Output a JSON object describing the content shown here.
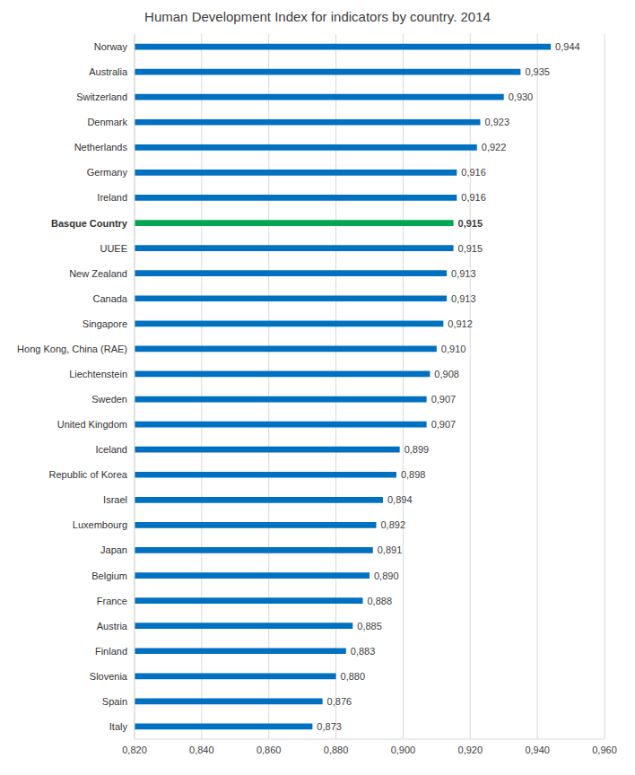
{
  "chart_data": {
    "type": "bar",
    "orientation": "horizontal",
    "title": "Human Development Index for indicators by country. 2014",
    "categories": [
      "Norway",
      "Australia",
      "Switzerland",
      "Denmark",
      "Netherlands",
      "Germany",
      "Ireland",
      "Basque Country",
      "UUEE",
      "New Zealand",
      "Canada",
      "Singapore",
      "Hong Kong, China (RAE)",
      "Liechtenstein",
      "Sweden",
      "United Kingdom",
      "Iceland",
      "Republic of Korea",
      "Israel",
      "Luxembourg",
      "Japan",
      "Belgium",
      "France",
      "Austria",
      "Finland",
      "Slovenia",
      "Spain",
      "Italy"
    ],
    "values": [
      0.944,
      0.935,
      0.93,
      0.923,
      0.922,
      0.916,
      0.916,
      0.915,
      0.915,
      0.913,
      0.913,
      0.912,
      0.91,
      0.908,
      0.907,
      0.907,
      0.899,
      0.898,
      0.894,
      0.892,
      0.891,
      0.89,
      0.888,
      0.885,
      0.883,
      0.88,
      0.876,
      0.873
    ],
    "value_labels": [
      "0,944",
      "0,935",
      "0,930",
      "0,923",
      "0,922",
      "0,916",
      "0,916",
      "0,915",
      "0,915",
      "0,913",
      "0,913",
      "0,912",
      "0,910",
      "0,908",
      "0,907",
      "0,907",
      "0,899",
      "0,898",
      "0,894",
      "0,892",
      "0,891",
      "0,890",
      "0,888",
      "0,885",
      "0,883",
      "0,880",
      "0,876",
      "0,873"
    ],
    "colors": [
      "#0070c0",
      "#0070c0",
      "#0070c0",
      "#0070c0",
      "#0070c0",
      "#0070c0",
      "#0070c0",
      "#00a650",
      "#0070c0",
      "#0070c0",
      "#0070c0",
      "#0070c0",
      "#0070c0",
      "#0070c0",
      "#0070c0",
      "#0070c0",
      "#0070c0",
      "#0070c0",
      "#0070c0",
      "#0070c0",
      "#0070c0",
      "#0070c0",
      "#0070c0",
      "#0070c0",
      "#0070c0",
      "#0070c0",
      "#0070c0",
      "#0070c0"
    ],
    "data_labels": true,
    "grid": true,
    "xlim": [
      0.82,
      0.96
    ],
    "xticks": [
      {
        "value": 0.82,
        "label": "0,820"
      },
      {
        "value": 0.84,
        "label": "0,840"
      },
      {
        "value": 0.86,
        "label": "0,860"
      },
      {
        "value": 0.88,
        "label": "0,880"
      },
      {
        "value": 0.9,
        "label": "0,900"
      },
      {
        "value": 0.92,
        "label": "0,920"
      },
      {
        "value": 0.94,
        "label": "0,940"
      },
      {
        "value": 0.96,
        "label": "0,960"
      }
    ]
  }
}
